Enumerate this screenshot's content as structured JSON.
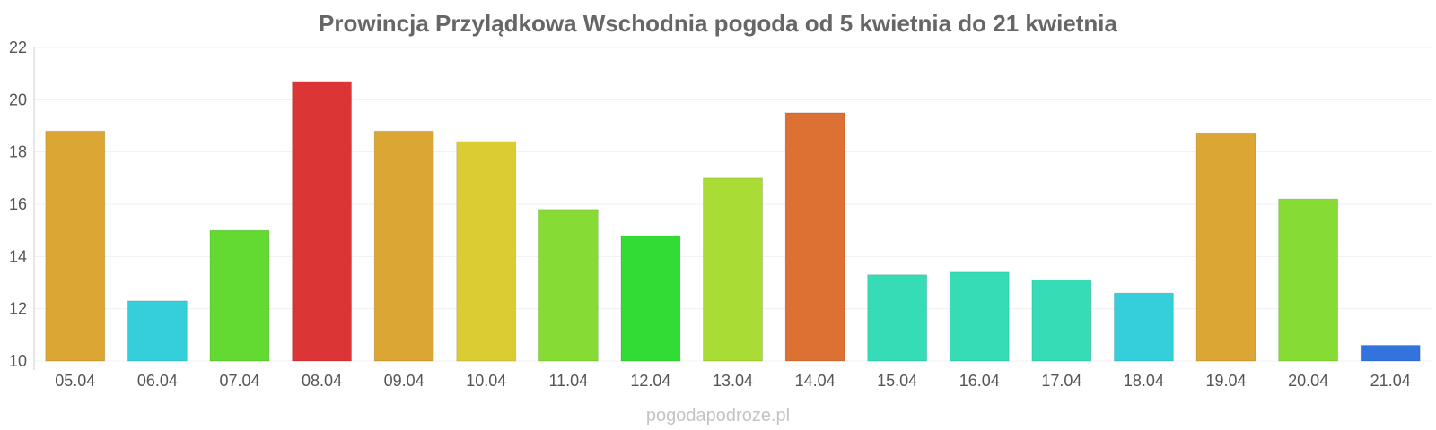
{
  "chart_data": {
    "type": "bar",
    "title": "Prowincja Przylądkowa Wschodnia pogoda od 5 kwietnia do 21 kwietnia",
    "xlabel": "",
    "ylabel": "",
    "ylim": [
      10,
      22
    ],
    "yticks": [
      10,
      12,
      14,
      16,
      18,
      20,
      22
    ],
    "grid": true,
    "categories": [
      "05.04",
      "06.04",
      "07.04",
      "08.04",
      "09.04",
      "10.04",
      "11.04",
      "12.04",
      "13.04",
      "14.04",
      "15.04",
      "16.04",
      "17.04",
      "18.04",
      "19.04",
      "20.04",
      "21.04"
    ],
    "values": [
      18.8,
      12.3,
      15.0,
      20.7,
      18.8,
      18.4,
      15.8,
      14.8,
      17.0,
      19.5,
      13.3,
      13.4,
      13.1,
      12.6,
      18.7,
      16.2,
      10.6
    ],
    "colors": [
      "#dba633",
      "#35cedb",
      "#62da32",
      "#dc3535",
      "#dba633",
      "#dbcc33",
      "#86dc35",
      "#32dc35",
      "#a9dc35",
      "#dd7033",
      "#35dcb6",
      "#35dcb6",
      "#35dcb6",
      "#35cedb",
      "#dba633",
      "#86dc35",
      "#3373dd"
    ]
  },
  "watermark": "pogodapodroze.pl"
}
